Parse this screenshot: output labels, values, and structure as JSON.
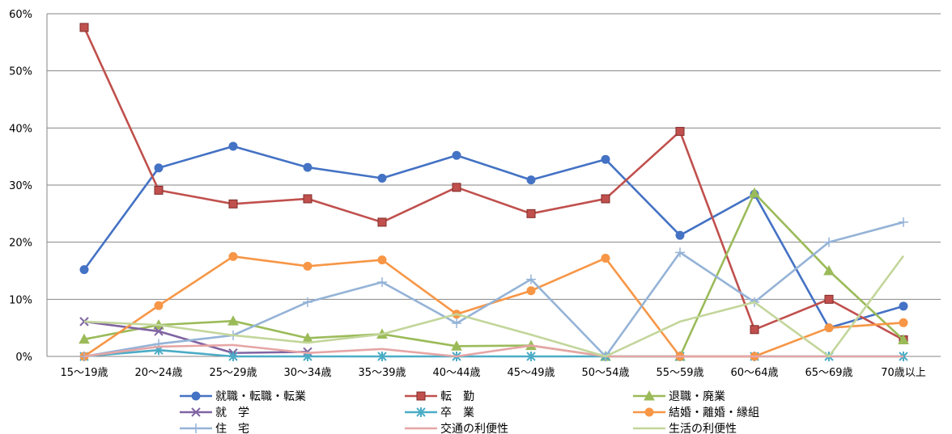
{
  "chart_data": {
    "type": "line",
    "title": "",
    "xlabel": "",
    "ylabel": "",
    "ylim": [
      0,
      60
    ],
    "y_tick_labels": [
      "0%",
      "10%",
      "20%",
      "30%",
      "40%",
      "50%",
      "60%"
    ],
    "grid": "horizontal major lines",
    "legend_position": "bottom",
    "categories": [
      "15～19歳",
      "20～24歳",
      "25～29歳",
      "30～34歳",
      "35～39歳",
      "40～44歳",
      "45～49歳",
      "50～54歳",
      "55～59歳",
      "60～64歳",
      "65～69歳",
      "70歳以上"
    ],
    "series": [
      {
        "name": "就職・転職・転業",
        "color": "#4472C4",
        "marker": "circle",
        "values": [
          15.2,
          33.0,
          36.8,
          33.1,
          31.2,
          35.2,
          30.9,
          34.5,
          21.2,
          28.4,
          5.0,
          8.8
        ]
      },
      {
        "name": "転　勤",
        "color": "#C0504D",
        "marker": "square",
        "values": [
          57.6,
          29.1,
          26.7,
          27.6,
          23.5,
          29.6,
          25.0,
          27.6,
          39.4,
          4.7,
          10.0,
          2.9
        ]
      },
      {
        "name": "退職・廃業",
        "color": "#9BBB59",
        "marker": "triangle",
        "values": [
          3.0,
          5.5,
          6.2,
          3.2,
          3.9,
          1.8,
          1.9,
          0.0,
          0.0,
          28.6,
          15.0,
          2.9
        ]
      },
      {
        "name": "就　学",
        "color": "#8064A2",
        "marker": "x",
        "values": [
          6.1,
          4.4,
          0.6,
          0.8,
          null,
          null,
          null,
          null,
          null,
          null,
          null,
          null
        ]
      },
      {
        "name": "卒　業",
        "color": "#4BACC6",
        "marker": "asterisk",
        "values": [
          0.0,
          1.1,
          0.0,
          0.0,
          0.0,
          0.0,
          0.0,
          0.0,
          0.0,
          0.0,
          0.0,
          0.0
        ]
      },
      {
        "name": "結婚・離婚・縁組",
        "color": "#F79646",
        "marker": "circle",
        "values": [
          0.0,
          8.9,
          17.5,
          15.8,
          16.9,
          7.4,
          11.5,
          17.2,
          0.0,
          0.0,
          5.0,
          5.9
        ]
      },
      {
        "name": "住　宅",
        "color": "#95B3D7",
        "marker": "plus",
        "values": [
          0.0,
          2.2,
          3.7,
          9.5,
          13.0,
          5.8,
          13.5,
          0.0,
          18.2,
          9.5,
          20.0,
          23.5
        ]
      },
      {
        "name": "交通の利便性",
        "color": "#E6A5A5",
        "marker": "none",
        "values": [
          0.0,
          1.7,
          2.0,
          0.6,
          1.3,
          0.0,
          1.9,
          0.0,
          0.0,
          0.0,
          0.0,
          0.0
        ]
      },
      {
        "name": "生活の利便性",
        "color": "#C3D69B",
        "marker": "none",
        "values": [
          6.1,
          5.5,
          3.7,
          2.4,
          3.9,
          7.4,
          3.8,
          0.0,
          6.1,
          9.5,
          0.0,
          17.6
        ]
      }
    ]
  }
}
